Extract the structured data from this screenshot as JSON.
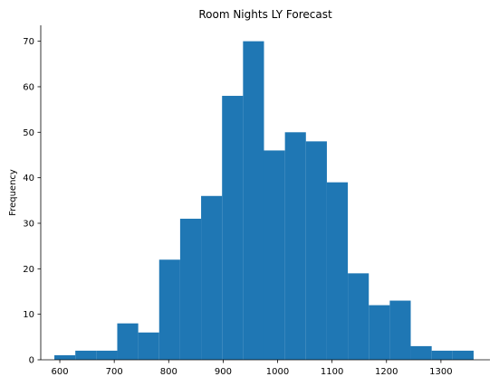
{
  "chart_data": {
    "type": "bar",
    "title": "Room Nights LY Forecast",
    "xlabel": "",
    "ylabel": "Frequency",
    "bin_edges": [
      590,
      628.5,
      667,
      705.5,
      744,
      782.5,
      821,
      859.5,
      898,
      936.5,
      975,
      1013.5,
      1052,
      1090.5,
      1129,
      1167.5,
      1206,
      1244.5,
      1283,
      1321.5,
      1360
    ],
    "values": [
      1,
      2,
      2,
      8,
      6,
      22,
      31,
      36,
      58,
      70,
      46,
      50,
      48,
      39,
      19,
      12,
      13,
      3,
      2,
      2
    ],
    "xlim": [
      565,
      1390
    ],
    "ylim": [
      0,
      73.5
    ],
    "xticks": [
      600,
      700,
      800,
      900,
      1000,
      1100,
      1200,
      1300
    ],
    "yticks": [
      0,
      10,
      20,
      30,
      40,
      50,
      60,
      70
    ],
    "bar_color": "#1f77b4",
    "grid": false
  }
}
